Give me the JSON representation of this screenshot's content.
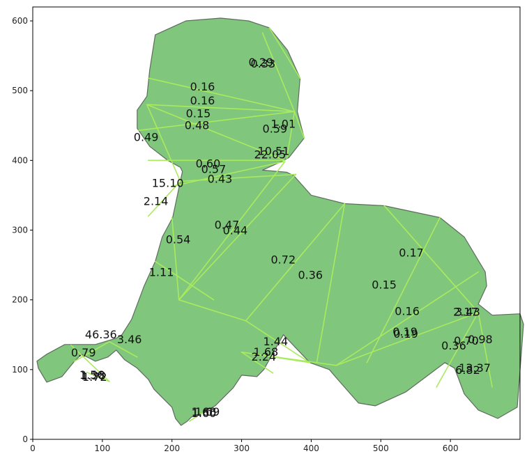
{
  "figure": {
    "colors": {
      "fill": "#80c77d",
      "outline": "#5e6b5e",
      "edges": "#a9ea5e",
      "axes": "#000000"
    },
    "axes": {
      "xlim": [
        0,
        700
      ],
      "ylim": [
        0,
        620
      ],
      "xticks": [
        0,
        100,
        200,
        300,
        400,
        500,
        600
      ],
      "yticks": [
        0,
        100,
        200,
        300,
        400,
        500,
        600
      ]
    },
    "outline": [
      [
        340,
        590
      ],
      [
        366,
        558
      ],
      [
        384,
        518
      ],
      [
        380,
        470
      ],
      [
        390,
        432
      ],
      [
        368,
        404
      ],
      [
        352,
        396
      ],
      [
        330,
        386
      ],
      [
        365,
        383
      ],
      [
        375,
        378
      ],
      [
        400,
        350
      ],
      [
        448,
        338
      ],
      [
        505,
        335
      ],
      [
        585,
        318
      ],
      [
        620,
        290
      ],
      [
        650,
        240
      ],
      [
        652,
        220
      ],
      [
        640,
        194
      ],
      [
        660,
        178
      ],
      [
        700,
        180
      ],
      [
        705,
        165
      ],
      [
        696,
        46
      ],
      [
        668,
        30
      ],
      [
        640,
        42
      ],
      [
        620,
        65
      ],
      [
        606,
        102
      ],
      [
        592,
        110
      ],
      [
        536,
        68
      ],
      [
        492,
        48
      ],
      [
        468,
        52
      ],
      [
        438,
        86
      ],
      [
        426,
        100
      ],
      [
        398,
        110
      ],
      [
        360,
        150
      ],
      [
        343,
        120
      ],
      [
        332,
        100
      ],
      [
        322,
        90
      ],
      [
        300,
        92
      ],
      [
        288,
        74
      ],
      [
        262,
        48
      ],
      [
        244,
        38
      ],
      [
        228,
        32
      ],
      [
        222,
        26
      ],
      [
        213,
        20
      ],
      [
        205,
        30
      ],
      [
        200,
        46
      ],
      [
        188,
        58
      ],
      [
        174,
        72
      ],
      [
        166,
        86
      ],
      [
        150,
        102
      ],
      [
        132,
        114
      ],
      [
        120,
        128
      ],
      [
        108,
        118
      ],
      [
        90,
        112
      ],
      [
        70,
        122
      ],
      [
        60,
        112
      ],
      [
        42,
        90
      ],
      [
        20,
        82
      ],
      [
        8,
        102
      ],
      [
        6,
        112
      ],
      [
        20,
        122
      ],
      [
        46,
        136
      ],
      [
        90,
        136
      ],
      [
        120,
        145
      ],
      [
        128,
        150
      ],
      [
        142,
        172
      ],
      [
        160,
        220
      ],
      [
        176,
        255
      ],
      [
        186,
        290
      ],
      [
        201,
        318
      ],
      [
        212,
        370
      ],
      [
        215,
        384
      ],
      [
        212,
        390
      ],
      [
        194,
        400
      ],
      [
        168,
        420
      ],
      [
        150,
        446
      ],
      [
        150,
        472
      ],
      [
        164,
        492
      ],
      [
        168,
        530
      ],
      [
        176,
        580
      ],
      [
        220,
        600
      ],
      [
        270,
        604
      ],
      [
        310,
        600
      ]
    ],
    "edges": [
      [
        [
          340,
          590
        ],
        [
          384,
          518
        ]
      ],
      [
        [
          330,
          583
        ],
        [
          376,
          470
        ]
      ],
      [
        [
          166,
          518
        ],
        [
          376,
          470
        ]
      ],
      [
        [
          164,
          480
        ],
        [
          376,
          470
        ]
      ],
      [
        [
          152,
          443
        ],
        [
          376,
          470
        ]
      ],
      [
        [
          164,
          480
        ],
        [
          362,
          400
        ]
      ],
      [
        [
          376,
          470
        ],
        [
          365,
          403
        ]
      ],
      [
        [
          376,
          470
        ],
        [
          390,
          432
        ]
      ],
      [
        [
          166,
          400
        ],
        [
          362,
          400
        ]
      ],
      [
        [
          200,
          363
        ],
        [
          360,
          398
        ]
      ],
      [
        [
          164,
          480
        ],
        [
          212,
          370
        ]
      ],
      [
        [
          212,
          370
        ],
        [
          378,
          380
        ]
      ],
      [
        [
          212,
          370
        ],
        [
          166,
          320
        ]
      ],
      [
        [
          200,
          318
        ],
        [
          210,
          200
        ]
      ],
      [
        [
          210,
          200
        ],
        [
          362,
          398
        ]
      ],
      [
        [
          210,
          200
        ],
        [
          378,
          380
        ]
      ],
      [
        [
          176,
          255
        ],
        [
          260,
          200
        ]
      ],
      [
        [
          210,
          200
        ],
        [
          306,
          170
        ]
      ],
      [
        [
          306,
          170
        ],
        [
          448,
          338
        ]
      ],
      [
        [
          448,
          338
        ],
        [
          408,
          110
        ]
      ],
      [
        [
          505,
          335
        ],
        [
          640,
          182
        ]
      ],
      [
        [
          585,
          318
        ],
        [
          480,
          110
        ]
      ],
      [
        [
          640,
          182
        ],
        [
          436,
          106
        ]
      ],
      [
        [
          640,
          240
        ],
        [
          436,
          106
        ]
      ],
      [
        [
          640,
          182
        ],
        [
          580,
          75
        ]
      ],
      [
        [
          640,
          182
        ],
        [
          660,
          75
        ]
      ],
      [
        [
          306,
          170
        ],
        [
          398,
          110
        ]
      ],
      [
        [
          300,
          125
        ],
        [
          398,
          110
        ]
      ],
      [
        [
          300,
          125
        ],
        [
          436,
          106
        ]
      ],
      [
        [
          300,
          125
        ],
        [
          345,
          95
        ]
      ],
      [
        [
          55,
          135
        ],
        [
          110,
          83
        ]
      ],
      [
        [
          110,
          140
        ],
        [
          150,
          118
        ]
      ],
      [
        [
          110,
          140
        ],
        [
          60,
          112
        ]
      ],
      [
        [
          78,
          96
        ],
        [
          110,
          83
        ]
      ],
      [
        [
          225,
          26
        ],
        [
          244,
          38
        ]
      ]
    ],
    "labels": [
      {
        "t": "0.29",
        "x": 310,
        "y": 535
      },
      {
        "t": "0.33",
        "x": 313,
        "y": 533
      },
      {
        "t": "0.16",
        "x": 226,
        "y": 500
      },
      {
        "t": "0.16",
        "x": 226,
        "y": 480
      },
      {
        "t": "0.15",
        "x": 220,
        "y": 462
      },
      {
        "t": "0.48",
        "x": 218,
        "y": 445
      },
      {
        "t": "1.01",
        "x": 342,
        "y": 447
      },
      {
        "t": "0.59",
        "x": 330,
        "y": 440
      },
      {
        "t": "0.49",
        "x": 145,
        "y": 428
      },
      {
        "t": "10.51",
        "x": 323,
        "y": 408
      },
      {
        "t": "22.05",
        "x": 318,
        "y": 403
      },
      {
        "t": "0.60",
        "x": 234,
        "y": 390
      },
      {
        "t": "0.57",
        "x": 242,
        "y": 382
      },
      {
        "t": "0.43",
        "x": 251,
        "y": 368
      },
      {
        "t": "15.10",
        "x": 171,
        "y": 362
      },
      {
        "t": "2.14",
        "x": 159,
        "y": 336
      },
      {
        "t": "0.47",
        "x": 261,
        "y": 302
      },
      {
        "t": "0.44",
        "x": 273,
        "y": 294
      },
      {
        "t": "0.54",
        "x": 191,
        "y": 281
      },
      {
        "t": "0.72",
        "x": 342,
        "y": 252
      },
      {
        "t": "0.36",
        "x": 381,
        "y": 230
      },
      {
        "t": "1.11",
        "x": 167,
        "y": 234
      },
      {
        "t": "0.17",
        "x": 526,
        "y": 262
      },
      {
        "t": "0.15",
        "x": 487,
        "y": 216
      },
      {
        "t": "0.16",
        "x": 520,
        "y": 178
      },
      {
        "t": "2.17",
        "x": 604,
        "y": 177
      },
      {
        "t": "3.43",
        "x": 607,
        "y": 177
      },
      {
        "t": "46.36",
        "x": 75,
        "y": 145
      },
      {
        "t": "3.46",
        "x": 121,
        "y": 138
      },
      {
        "t": "0.19",
        "x": 517,
        "y": 149
      },
      {
        "t": "0.19",
        "x": 518,
        "y": 146
      },
      {
        "t": "0.70",
        "x": 605,
        "y": 136
      },
      {
        "t": "0.98",
        "x": 625,
        "y": 138
      },
      {
        "t": "0.36",
        "x": 587,
        "y": 129
      },
      {
        "t": "1.44",
        "x": 331,
        "y": 135
      },
      {
        "t": "1.68",
        "x": 317,
        "y": 120
      },
      {
        "t": "2.24",
        "x": 314,
        "y": 113
      },
      {
        "t": "0.79",
        "x": 55,
        "y": 119
      },
      {
        "t": "13.37",
        "x": 612,
        "y": 97
      },
      {
        "t": "6.82",
        "x": 607,
        "y": 94
      },
      {
        "t": "1.56",
        "x": 67,
        "y": 87
      },
      {
        "t": "1.38",
        "x": 69,
        "y": 86
      },
      {
        "t": "1.72",
        "x": 71,
        "y": 84
      },
      {
        "t": "1.68",
        "x": 228,
        "y": 34
      },
      {
        "t": "1.69",
        "x": 233,
        "y": 34
      },
      {
        "t": "1.60",
        "x": 228,
        "y": 32
      }
    ]
  }
}
